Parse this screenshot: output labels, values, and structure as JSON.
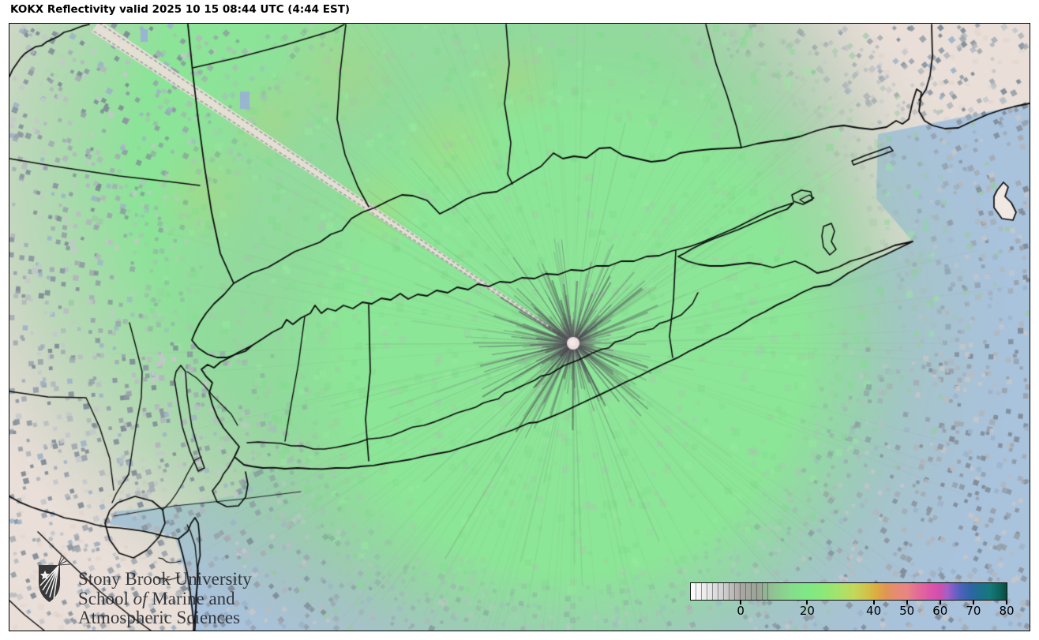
{
  "header": {
    "title": "KOKX Reflectivity valid 2025 10 15 08:44 UTC (4:44 EST)"
  },
  "branding": {
    "line1": "Stony Brook University",
    "line2_prefix": "School ",
    "line2_italic": "of",
    "line2_suffix": " Marine and",
    "line3": "Atmospheric Sciences"
  },
  "colorbar": {
    "vmin": -15,
    "vmax": 80,
    "tick_values": [
      0,
      20,
      40,
      50,
      60,
      70,
      80
    ],
    "tick_labels": [
      "0",
      "20",
      "40",
      "50",
      "60",
      "70",
      "80"
    ],
    "stops": [
      {
        "v": -15,
        "color": "#ffffff"
      },
      {
        "v": -10,
        "color": "#e8e8e8"
      },
      {
        "v": -5,
        "color": "#cfcfcf"
      },
      {
        "v": 0,
        "color": "#aaa7a4"
      },
      {
        "v": 5,
        "color": "#9aa497"
      },
      {
        "v": 10,
        "color": "#90c492"
      },
      {
        "v": 15,
        "color": "#86dc8d"
      },
      {
        "v": 20,
        "color": "#7ee885"
      },
      {
        "v": 25,
        "color": "#8ce878"
      },
      {
        "v": 30,
        "color": "#a8e26a"
      },
      {
        "v": 34,
        "color": "#c2d95b"
      },
      {
        "v": 38,
        "color": "#d2c24a"
      },
      {
        "v": 41,
        "color": "#dcab3f"
      },
      {
        "v": 44,
        "color": "#e19357"
      },
      {
        "v": 47,
        "color": "#e68b74"
      },
      {
        "v": 50,
        "color": "#e88583"
      },
      {
        "v": 53,
        "color": "#e36d97"
      },
      {
        "v": 57,
        "color": "#dc57a8"
      },
      {
        "v": 60,
        "color": "#cf4fae"
      },
      {
        "v": 62,
        "color": "#a75fc5"
      },
      {
        "v": 64,
        "color": "#7a5ec7"
      },
      {
        "v": 66,
        "color": "#4f62bd"
      },
      {
        "v": 69,
        "color": "#2f64a8"
      },
      {
        "v": 72,
        "color": "#1d6f8e"
      },
      {
        "v": 75,
        "color": "#15787a"
      },
      {
        "v": 78,
        "color": "#0d6358"
      },
      {
        "v": 80,
        "color": "#084a40"
      }
    ]
  },
  "map_colors": {
    "echo_green": "#8ce697",
    "ocean_blue": "#a9c3dd",
    "terrain_tan": "#e9dfd8",
    "coastline": "#0c0c0d",
    "radar_dot": "#ecdcda",
    "speckle_grays": [
      "#97a0a9",
      "#a3aab1",
      "#8b95a0",
      "#b1b6bb",
      "#7e8a96",
      "#c4c7ca"
    ],
    "speckle_blue": "#9db3c9",
    "speckle_green": "#9ccaa5"
  }
}
